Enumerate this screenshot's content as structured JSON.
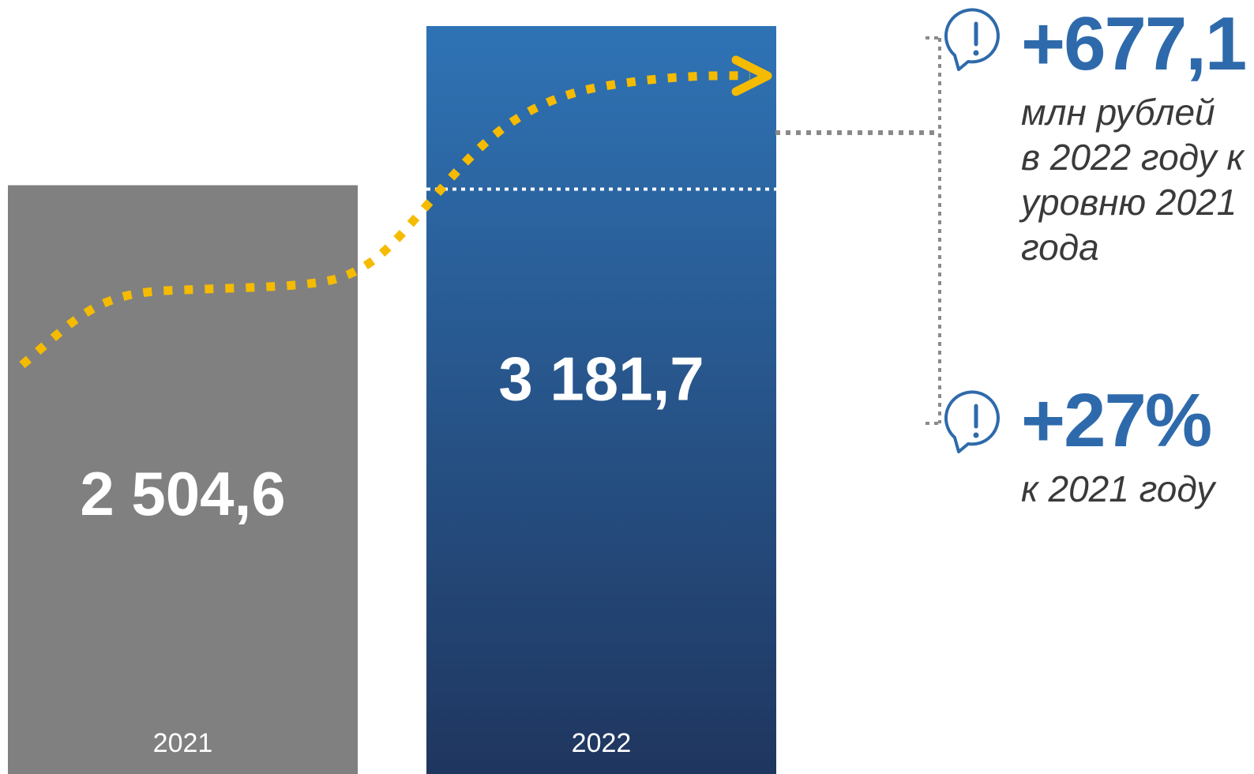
{
  "chart_data": {
    "type": "bar",
    "categories": [
      "2021",
      "2022"
    ],
    "values": [
      2504.6,
      3181.7
    ],
    "value_labels": [
      "2 504,6",
      "3 181,7"
    ],
    "title": "",
    "xlabel": "",
    "ylabel": "",
    "ylim": [
      0,
      3400
    ],
    "grid": false,
    "legend": "none",
    "colors": {
      "bar_2021": "#808080",
      "bar_2022_top": "#2f73b5",
      "bar_2022_bottom": "#1f365f",
      "trend_arrow": "#f5bb00",
      "connector": "#8a8a8a"
    },
    "annotations": [
      {
        "value": "+677,1",
        "text": "млн рублей\nв 2022 году к\nуровню 2021\nгода",
        "icon": "alert-speech-bubble-icon"
      },
      {
        "value": "+27%",
        "text": "к 2021 году",
        "icon": "alert-speech-bubble-icon"
      }
    ]
  }
}
